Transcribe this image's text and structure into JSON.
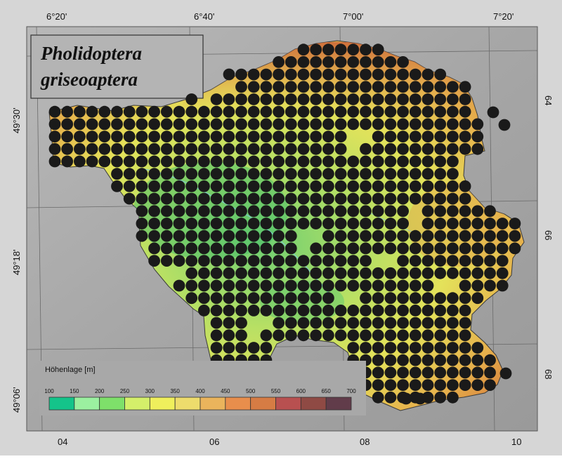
{
  "title": {
    "line1": "Pholidoptera",
    "line2": "griseoaptera"
  },
  "longitude_labels": [
    "6°20'",
    "6°40'",
    "7°00'",
    "7°20'"
  ],
  "latitude_labels": [
    "49°30'",
    "49°18'",
    "49°06'"
  ],
  "grid_labels_bottom": [
    "04",
    "06",
    "08",
    "10"
  ],
  "grid_labels_right": [
    "64",
    "66",
    "68"
  ],
  "legend": {
    "title": "Höhenlage [m]",
    "ticks": [
      "100",
      "150",
      "200",
      "250",
      "300",
      "350",
      "400",
      "450",
      "500",
      "550",
      "600",
      "650",
      "700"
    ],
    "colors": [
      "#14c48a",
      "#9bf0a0",
      "#7ee06a",
      "#d4ef6a",
      "#efef5c",
      "#eddc6c",
      "#eab45c",
      "#e88e4c",
      "#d67c44",
      "#b85050",
      "#8f4a44",
      "#613c4a"
    ]
  },
  "colors": {
    "background": "#a9a9a9",
    "frame": "#d6d6d6",
    "dot": "#1a1a1a",
    "terrain_low": "#5ec86e",
    "terrain_mid": "#dede5a",
    "terrain_high": "#e08a3c"
  }
}
